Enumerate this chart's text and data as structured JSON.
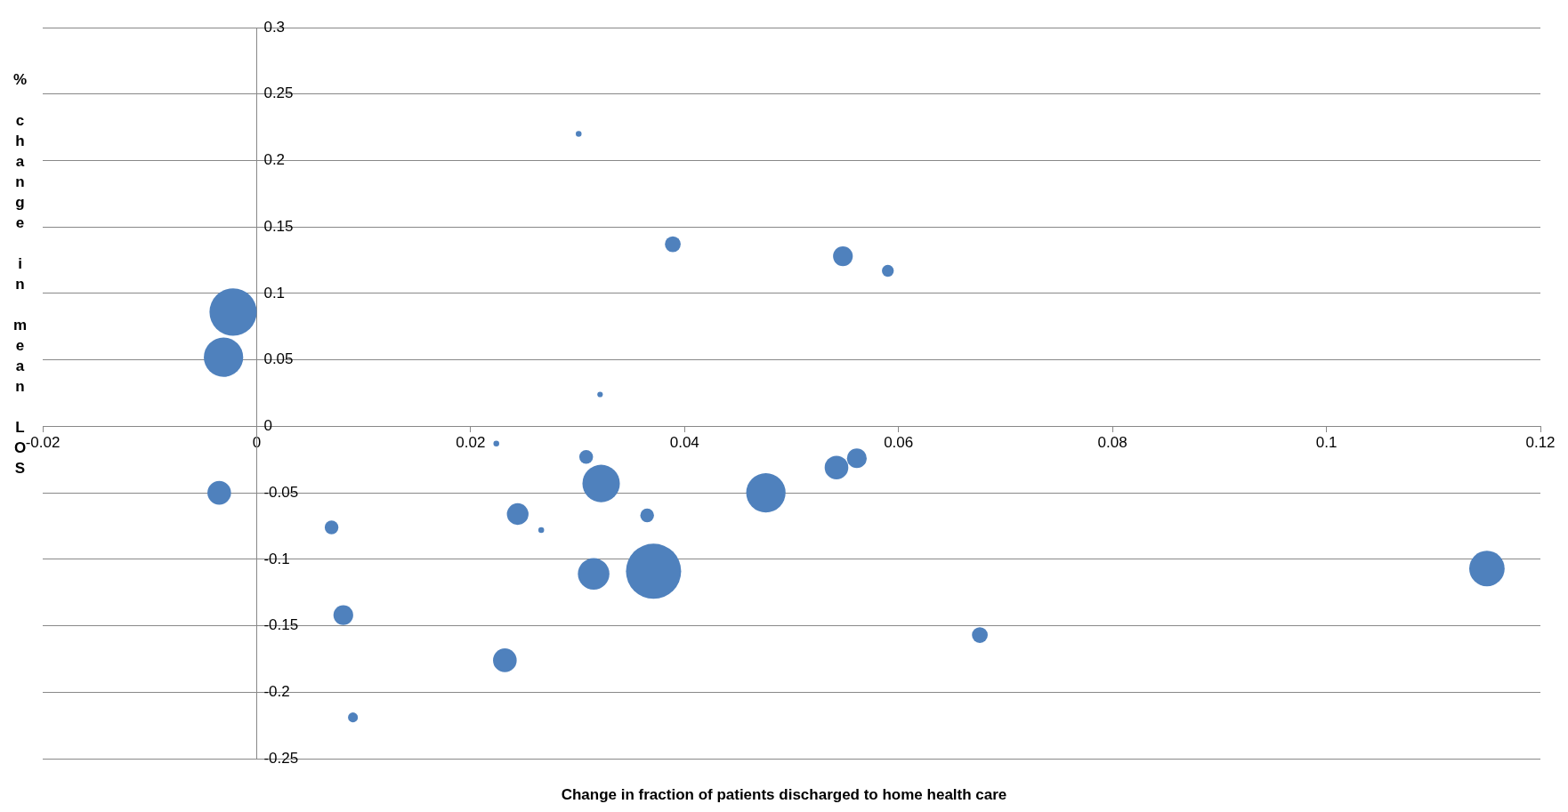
{
  "chart_data": {
    "type": "bubble",
    "xlabel": "Change in fraction of patients discharged to home health care",
    "ylabel": "% change in mean LOS",
    "xlim": [
      -0.02,
      0.12
    ],
    "xticks": [
      -0.02,
      0,
      0.02,
      0.04,
      0.06,
      0.08,
      0.1,
      0.12
    ],
    "ylim": [
      -0.25,
      0.3
    ],
    "yticks": [
      -0.25,
      -0.2,
      -0.15,
      -0.1,
      -0.05,
      0,
      0.05,
      0.1,
      0.15,
      0.2,
      0.25,
      0.3
    ],
    "grid": "y",
    "legend": false,
    "series": [
      {
        "color": "#4f81bd",
        "x": [
          0.0301,
          0.0389,
          0.0548,
          0.059,
          -0.0022,
          -0.0031,
          0.0321,
          0.0224,
          0.0308,
          0.0561,
          0.0542,
          0.0322,
          0.0476,
          -0.0035,
          0.0244,
          0.0365,
          0.007,
          0.0266,
          0.0315,
          0.0371,
          0.115,
          0.0081,
          0.0676,
          0.0232,
          0.009
        ],
        "values": [
          0.22,
          0.137,
          0.128,
          0.117,
          0.086,
          0.052,
          0.024,
          -0.013,
          -0.023,
          -0.024,
          -0.031,
          -0.043,
          -0.05,
          -0.05,
          -0.066,
          -0.067,
          -0.076,
          -0.078,
          -0.111,
          -0.109,
          -0.107,
          -0.142,
          -0.157,
          -0.176,
          -0.219
        ],
        "sizes": [
          0.011,
          0.082,
          0.128,
          0.046,
          0.735,
          0.51,
          0.01,
          0.011,
          0.062,
          0.128,
          0.184,
          0.46,
          0.51,
          0.184,
          0.154,
          0.062,
          0.062,
          0.011,
          0.327,
          1,
          0.413,
          0.128,
          0.082,
          0.184,
          0.032
        ]
      }
    ]
  }
}
